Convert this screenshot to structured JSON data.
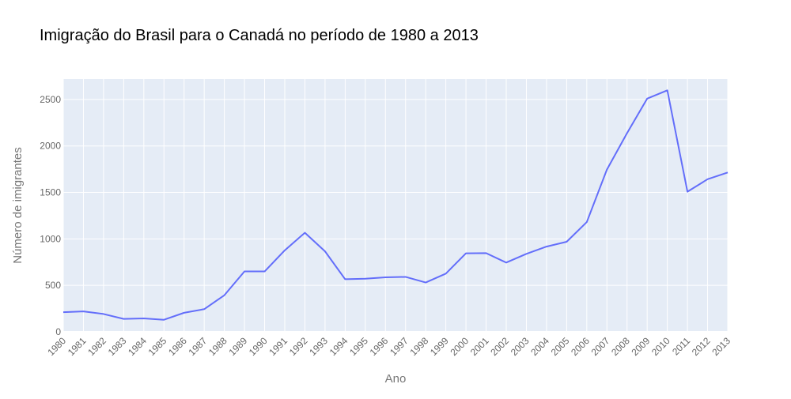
{
  "chart_data": {
    "type": "line",
    "title": "Imigração do Brasil para o Canadá no período de 1980 a 2013",
    "xlabel": "Ano",
    "ylabel": "Número de imigrantes",
    "x": [
      "1980",
      "1981",
      "1982",
      "1983",
      "1984",
      "1985",
      "1986",
      "1987",
      "1988",
      "1989",
      "1990",
      "1991",
      "1992",
      "1993",
      "1994",
      "1995",
      "1996",
      "1997",
      "1998",
      "1999",
      "2000",
      "2001",
      "2002",
      "2003",
      "2004",
      "2005",
      "2006",
      "2007",
      "2008",
      "2009",
      "2010",
      "2011",
      "2012",
      "2013"
    ],
    "series": [
      {
        "values": [
          211,
          220,
          192,
          139,
          145,
          130,
          205,
          244,
          394,
          650,
          650,
          877,
          1066,
          866,
          566,
          572,
          586,
          591,
          531,
          626,
          845,
          847,
          745,
          839,
          917,
          969,
          1181,
          1746,
          2138,
          2509,
          2598,
          1508,
          1642,
          1714
        ]
      }
    ],
    "ylim": [
      0,
      2720
    ],
    "yticks": [
      0,
      500,
      1000,
      1500,
      2000,
      2500
    ],
    "grid": true,
    "line_color": "#636efa",
    "plot_bg_color": "#e5ecf6",
    "grid_color": "#ffffff"
  }
}
